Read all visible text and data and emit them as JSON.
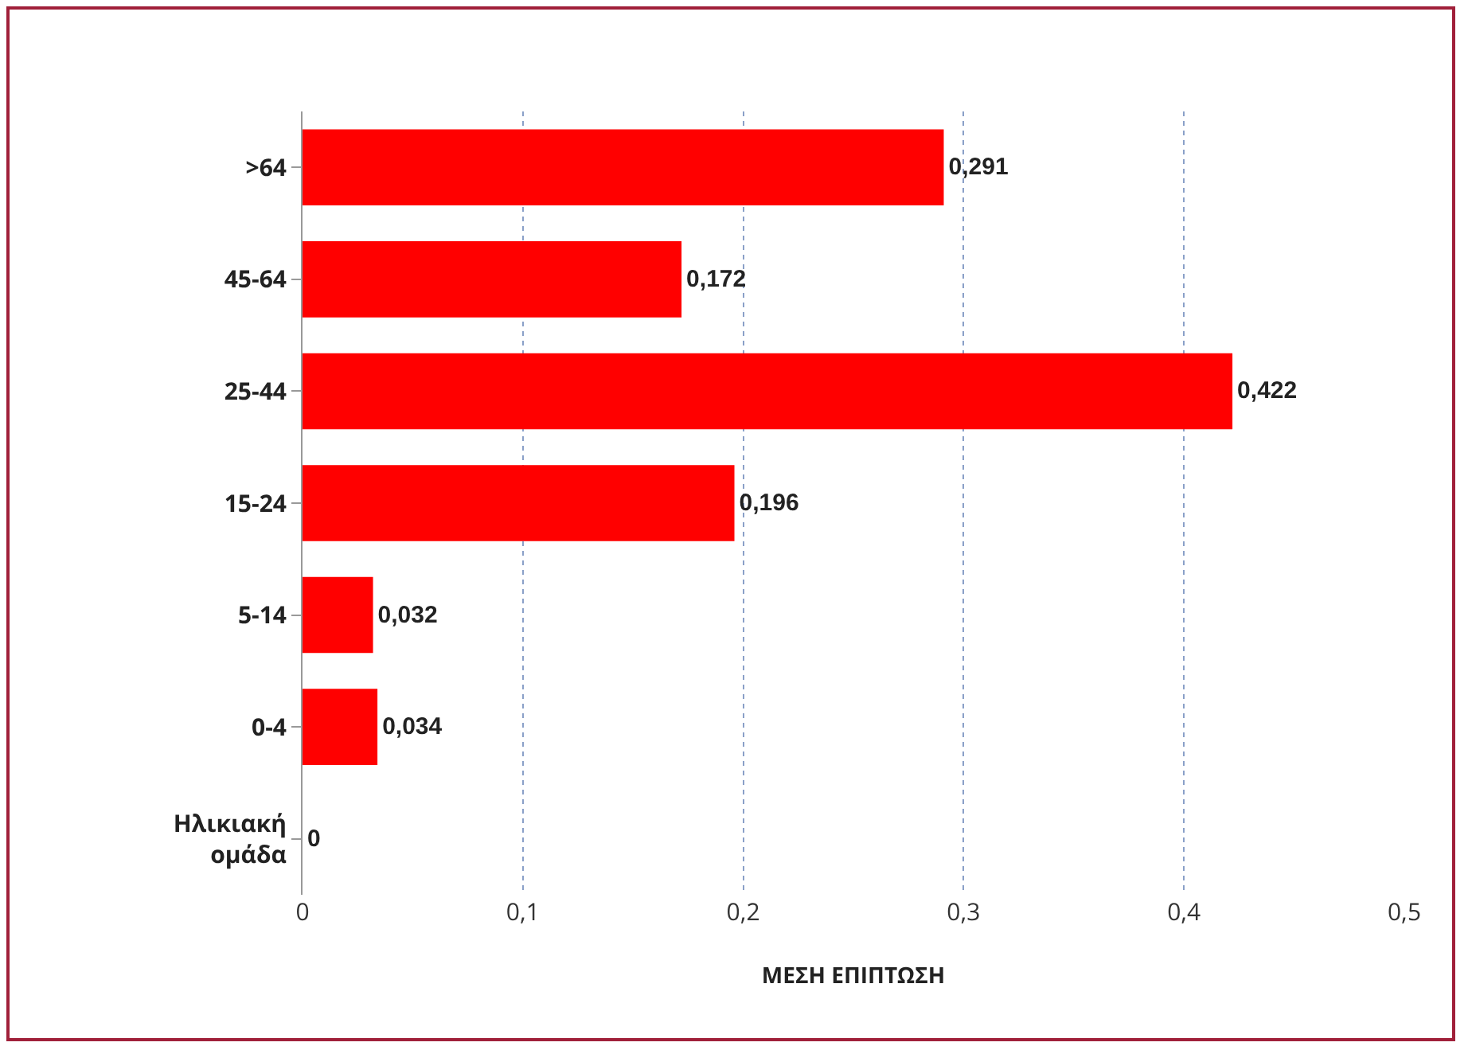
{
  "chart_data": {
    "type": "bar",
    "orientation": "horizontal",
    "categories": [
      ">64",
      "45-64",
      "25-44",
      "15-24",
      "5-14",
      "0-4",
      "Ηλικιακή ομάδα"
    ],
    "values": [
      0.291,
      0.172,
      0.422,
      0.196,
      0.032,
      0.034,
      0
    ],
    "value_labels": [
      "0,291",
      "0,172",
      "0,422",
      "0,196",
      "0,032",
      "0,034",
      "0"
    ],
    "color": "#ff0000",
    "xlim": [
      0,
      0.5
    ],
    "xticks": [
      0,
      {
        "value": 0.1,
        "label": "0,1"
      },
      {
        "value": 0.2,
        "label": "0,2"
      },
      {
        "value": 0.3,
        "label": "0,3"
      },
      {
        "value": 0.4,
        "label": "0,4"
      },
      {
        "value": 0.5,
        "label": "0,5"
      }
    ],
    "xlabel": "ΜΕΣΗ ΕΠΙΠΤΩΣΗ",
    "grid": "x",
    "legend": false
  }
}
